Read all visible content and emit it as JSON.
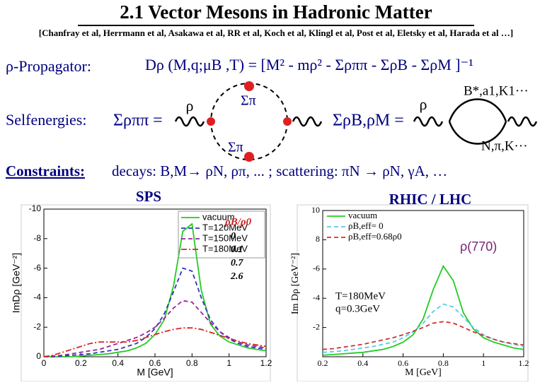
{
  "slide": {
    "title": "2.1 Vector Mesons in Hadronic Matter",
    "references": "[Chanfray et al, Herrmann et al, Asakawa et al, RR et al, Koch et al, Klingl et al, Post et al, Eletsky et al, Harada et al …]",
    "propagator_label": "ρ-Propagator:",
    "propagator_formula": "Dρ (M,q;μB ,T) = [M² - mρ² - Σρππ - ΣρB - ΣρM ]⁻¹",
    "selfenergies_label": "Selfenergies:",
    "sigma_rhopipi": "Σρππ =",
    "sigma_pi_top": "Σπ",
    "sigma_pi_bottom": "Σπ",
    "rho_left": "ρ",
    "rho_right": "ρ",
    "sigma_rhoB_rhoM": "ΣρB,ρM =",
    "resonances_top": "B*,a1,K1···",
    "resonances_bottom": "N,π,K···",
    "constraints_label": "Constraints:",
    "constraints_text": "decays: B,M→ ρN, ρπ, ... ; scattering: πN → ρN, γA, …",
    "left_heading": "SPS",
    "right_heading": "RHIC / LHC"
  },
  "chart_data": [
    {
      "type": "line",
      "y_label": "ImDρ [GeV⁻²]",
      "x_label": "M [GeV]",
      "x": [
        0,
        0.05,
        0.1,
        0.15,
        0.2,
        0.25,
        0.3,
        0.35,
        0.4,
        0.45,
        0.5,
        0.55,
        0.6,
        0.65,
        0.7,
        0.75,
        0.8,
        0.85,
        0.9,
        0.95,
        1,
        1.05,
        1.1,
        1.15,
        1.2
      ],
      "series": [
        {
          "name": "vacuum",
          "color": "#22cc22",
          "dash": "solid",
          "values": [
            0,
            0,
            0,
            0,
            -0.05,
            -0.1,
            -0.15,
            -0.2,
            -0.3,
            -0.4,
            -0.6,
            -0.9,
            -1.5,
            -2.5,
            -4.8,
            -8.5,
            -9.0,
            -4.5,
            -2.2,
            -1.4,
            -1.0,
            -0.8,
            -0.6,
            -0.5,
            -0.4
          ]
        },
        {
          "name": "T=120MeV",
          "color": "#3333bb",
          "dash": "dashed",
          "values": [
            0,
            0,
            -0.05,
            -0.1,
            -0.15,
            -0.2,
            -0.3,
            -0.4,
            -0.5,
            -0.7,
            -0.9,
            -1.3,
            -1.9,
            -2.9,
            -4.4,
            -6.0,
            -5.8,
            -4.0,
            -2.5,
            -1.7,
            -1.2,
            -0.9,
            -0.7,
            -0.6,
            -0.5
          ]
        },
        {
          "name": "T=150MeV",
          "color": "#992299",
          "dash": "dashed",
          "values": [
            0,
            -0.05,
            -0.1,
            -0.2,
            -0.3,
            -0.4,
            -0.5,
            -0.7,
            -0.9,
            -1.1,
            -1.3,
            -1.6,
            -2.0,
            -2.6,
            -3.3,
            -3.8,
            -3.7,
            -3.0,
            -2.3,
            -1.7,
            -1.3,
            -1.0,
            -0.8,
            -0.7,
            -0.6
          ]
        },
        {
          "name": "T=180MeV",
          "color": "#dd2222",
          "dash": "dashdot",
          "values": [
            0,
            -0.1,
            -0.3,
            -0.5,
            -0.7,
            -0.9,
            -1.0,
            -1.0,
            -1.0,
            -1.0,
            -1.1,
            -1.3,
            -1.5,
            -1.7,
            -1.85,
            -1.95,
            -1.95,
            -1.85,
            -1.65,
            -1.45,
            -1.25,
            -1.05,
            -0.9,
            -0.8,
            -0.7
          ]
        }
      ],
      "xlim": [
        0,
        1.2
      ],
      "xticks": [
        0,
        0.2,
        0.4,
        0.6,
        0.8,
        1,
        1.2
      ],
      "ylim": [
        0,
        -10
      ],
      "yticks": [
        0,
        -2,
        -4,
        -6,
        -8,
        -10
      ],
      "legend": "upper right",
      "annotations": [
        "ρB/ρ0",
        "0",
        "0.1",
        "0.7",
        "2.6"
      ]
    },
    {
      "type": "line",
      "y_label": "Im Dρ [GeV⁻²]",
      "x_label": "M [GeV]",
      "x": [
        0.2,
        0.25,
        0.3,
        0.35,
        0.4,
        0.45,
        0.5,
        0.55,
        0.6,
        0.65,
        0.7,
        0.75,
        0.8,
        0.85,
        0.9,
        0.95,
        1,
        1.05,
        1.1,
        1.15,
        1.2
      ],
      "series": [
        {
          "name": "vacuum",
          "color": "#22cc22",
          "dash": "solid",
          "values": [
            -0.1,
            -0.15,
            -0.2,
            -0.25,
            -0.3,
            -0.4,
            -0.5,
            -0.7,
            -1.0,
            -1.5,
            -2.6,
            -4.6,
            -6.2,
            -5.2,
            -3.0,
            -1.9,
            -1.3,
            -1.0,
            -0.8,
            -0.6,
            -0.5
          ]
        },
        {
          "name": "ρB,eff= 0",
          "color": "#55ccee",
          "dash": "dashed",
          "values": [
            -0.3,
            -0.35,
            -0.4,
            -0.5,
            -0.6,
            -0.7,
            -0.85,
            -1.0,
            -1.3,
            -1.7,
            -2.3,
            -3.1,
            -3.6,
            -3.4,
            -2.7,
            -2.0,
            -1.5,
            -1.2,
            -1.0,
            -0.85,
            -0.7
          ]
        },
        {
          "name": "ρB,eff=0.68ρ0",
          "color": "#cc3333",
          "dash": "dashed",
          "values": [
            -0.5,
            -0.55,
            -0.65,
            -0.75,
            -0.85,
            -1.0,
            -1.15,
            -1.3,
            -1.5,
            -1.75,
            -2.0,
            -2.3,
            -2.4,
            -2.3,
            -2.0,
            -1.7,
            -1.45,
            -1.2,
            -1.0,
            -0.9,
            -0.8
          ]
        }
      ],
      "xlim": [
        0.2,
        1.2
      ],
      "xticks": [
        0.2,
        0.4,
        0.6,
        0.8,
        1,
        1.2
      ],
      "ylim": [
        0,
        -10
      ],
      "yticks": [
        -2,
        -4,
        {
          "value": -6,
          "label": "-6"
        },
        {
          "value": -8,
          "label": "8"
        },
        {
          "value": -10,
          "label": "10"
        }
      ],
      "legend": "upper left",
      "annotations": [
        "ρ(770)",
        "T=180MeV",
        "q=0.3GeV"
      ]
    }
  ]
}
